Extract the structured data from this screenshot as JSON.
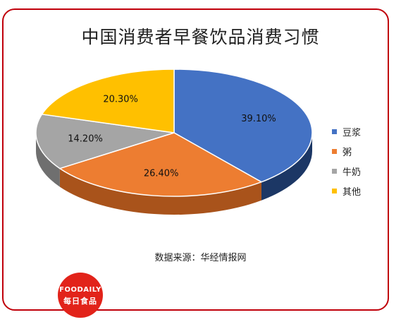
{
  "chart_data": {
    "type": "pie",
    "title": "中国消费者早餐饮品消费习惯",
    "slices": [
      {
        "label": "豆浆",
        "value": 39.1,
        "value_label": "39.10%",
        "color": "#4472c4",
        "side_color": "#1c3765"
      },
      {
        "label": "粥",
        "value": 26.4,
        "value_label": "26.40%",
        "color": "#ed7d31",
        "side_color": "#a9531b"
      },
      {
        "label": "牛奶",
        "value": 14.2,
        "value_label": "14.20%",
        "color": "#a5a5a5",
        "side_color": "#6f6f6f"
      },
      {
        "label": "其他",
        "value": 20.3,
        "value_label": "20.30%",
        "color": "#ffc000",
        "side_color": "#b08300"
      }
    ],
    "legend_position": "right",
    "source": "数据来源：华经情报网"
  },
  "logo": {
    "brand": "FOODAILY",
    "cn": "每日食品"
  }
}
